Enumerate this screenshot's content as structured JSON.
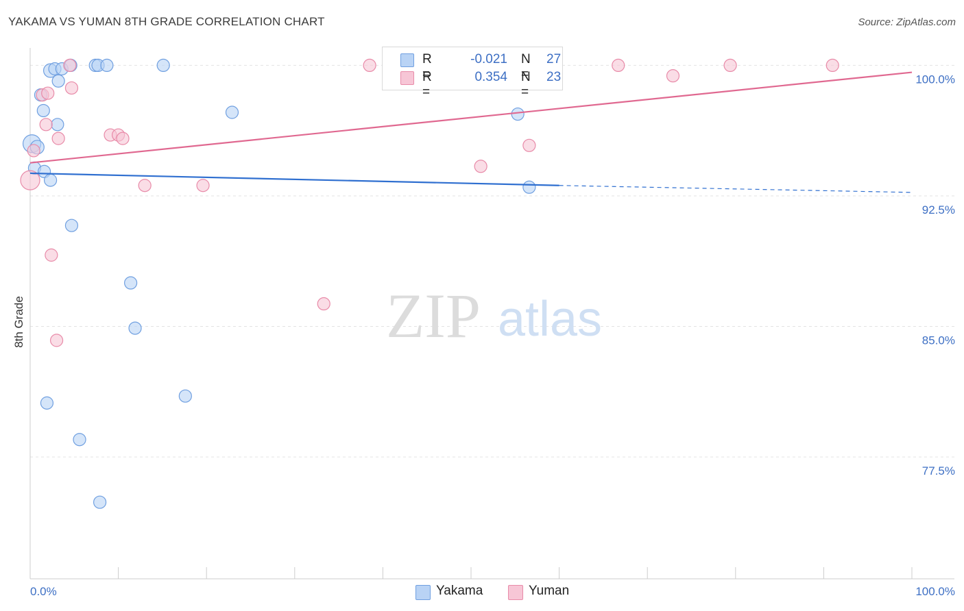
{
  "header": {
    "title": "YAKAMA VS YUMAN 8TH GRADE CORRELATION CHART",
    "source": "Source: ZipAtlas.com"
  },
  "watermark": {
    "zip": "ZIP",
    "atlas": "atlas"
  },
  "legend": {
    "r_label": "R =",
    "n_label": "N =",
    "entries": [
      {
        "name": "Yakama",
        "r": "-0.021",
        "n": "27",
        "fill": "#b9d3f5",
        "stroke": "#6f9fe0"
      },
      {
        "name": "Yuman",
        "r": "0.354",
        "n": "23",
        "fill": "#f7c6d6",
        "stroke": "#e88aa8"
      }
    ]
  },
  "colors": {
    "yakama_line": "#2f6fd0",
    "yuman_line": "#e06890",
    "tick_label": "#3d6fc4",
    "grid": "#e3e3e3"
  },
  "chart_data": {
    "type": "scatter",
    "title": "YAKAMA VS YUMAN 8TH GRADE CORRELATION CHART",
    "xlabel": "",
    "ylabel": "8th Grade",
    "xlim": [
      0,
      100
    ],
    "ylim": [
      70.5,
      101.0
    ],
    "x_tick_labels": [
      "0.0%",
      "100.0%"
    ],
    "y_ticks": [
      77.5,
      85.0,
      92.5,
      100.0
    ],
    "y_tick_labels": [
      "77.5%",
      "85.0%",
      "92.5%",
      "100.0%"
    ],
    "grid": true,
    "series": [
      {
        "name": "Yakama",
        "r": -0.021,
        "n": 27,
        "trend": {
          "x0": 0,
          "y0": 93.8,
          "x1": 60,
          "y1": 93.1,
          "dashed_to": 100,
          "dashed_y": 92.7
        },
        "points": [
          [
            0.2,
            95.5,
            13
          ],
          [
            0.8,
            95.3,
            10
          ],
          [
            0.5,
            94.1,
            9
          ],
          [
            1.5,
            97.4,
            9
          ],
          [
            1.2,
            98.3,
            9
          ],
          [
            2.3,
            99.7,
            10
          ],
          [
            2.8,
            99.8,
            9
          ],
          [
            3.6,
            99.8,
            9
          ],
          [
            4.6,
            100.0,
            9
          ],
          [
            3.2,
            99.1,
            9
          ],
          [
            3.1,
            96.6,
            9
          ],
          [
            7.4,
            100.0,
            9
          ],
          [
            7.7,
            100.0,
            9
          ],
          [
            8.7,
            100.0,
            9
          ],
          [
            15.1,
            100.0,
            9
          ],
          [
            1.6,
            93.9,
            9
          ],
          [
            2.3,
            93.4,
            9
          ],
          [
            22.9,
            97.3,
            9
          ],
          [
            55.3,
            97.2,
            9
          ],
          [
            56.6,
            93.0,
            9
          ],
          [
            4.7,
            90.8,
            9
          ],
          [
            11.4,
            87.5,
            9
          ],
          [
            11.9,
            84.9,
            9
          ],
          [
            1.9,
            80.6,
            9
          ],
          [
            17.6,
            81.0,
            9
          ],
          [
            5.6,
            78.5,
            9
          ],
          [
            7.9,
            74.9,
            9
          ]
        ]
      },
      {
        "name": "Yuman",
        "r": 0.354,
        "n": 23,
        "trend": {
          "x0": 0,
          "y0": 94.4,
          "x1": 100,
          "y1": 99.6
        },
        "points": [
          [
            0.0,
            93.4,
            14
          ],
          [
            1.4,
            98.3,
            9
          ],
          [
            2.0,
            98.4,
            9
          ],
          [
            4.5,
            100.0,
            9
          ],
          [
            4.7,
            98.7,
            9
          ],
          [
            1.8,
            96.6,
            9
          ],
          [
            3.2,
            95.8,
            9
          ],
          [
            9.1,
            96.0,
            9
          ],
          [
            10.0,
            96.0,
            9
          ],
          [
            10.5,
            95.8,
            9
          ],
          [
            0.4,
            95.1,
            9
          ],
          [
            13.0,
            93.1,
            9
          ],
          [
            19.6,
            93.1,
            9
          ],
          [
            38.5,
            100.0,
            9
          ],
          [
            56.6,
            95.4,
            9
          ],
          [
            51.1,
            94.2,
            9
          ],
          [
            66.7,
            100.0,
            9
          ],
          [
            79.4,
            100.0,
            9
          ],
          [
            91.0,
            100.0,
            9
          ],
          [
            72.9,
            99.4,
            9
          ],
          [
            2.4,
            89.1,
            9
          ],
          [
            33.3,
            86.3,
            9
          ],
          [
            3.0,
            84.2,
            9
          ]
        ]
      }
    ]
  }
}
